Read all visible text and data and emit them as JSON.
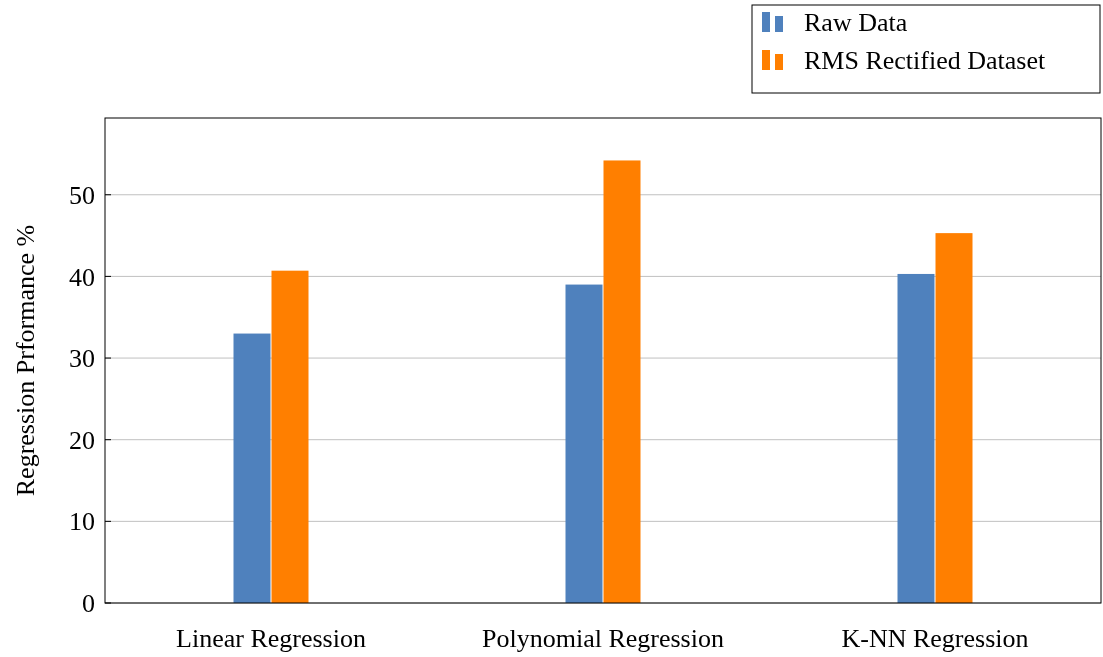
{
  "chart_data": {
    "type": "bar",
    "ylabel": "Regression Prformance %",
    "categories": [
      "Linear Regression",
      "Polynomial Regression",
      "K-NN Regression"
    ],
    "series": [
      {
        "name": "Raw Data",
        "color": "#4f81bd",
        "values": [
          33,
          39,
          40.3
        ]
      },
      {
        "name": "RMS Rectified Dataset",
        "color": "#ff7f00",
        "values": [
          40.7,
          54.2,
          45.3
        ]
      }
    ],
    "ylim": [
      0,
      59.4
    ],
    "yticks": [
      0,
      10,
      20,
      30,
      40,
      50
    ],
    "grid": "y",
    "legend": "top right"
  }
}
